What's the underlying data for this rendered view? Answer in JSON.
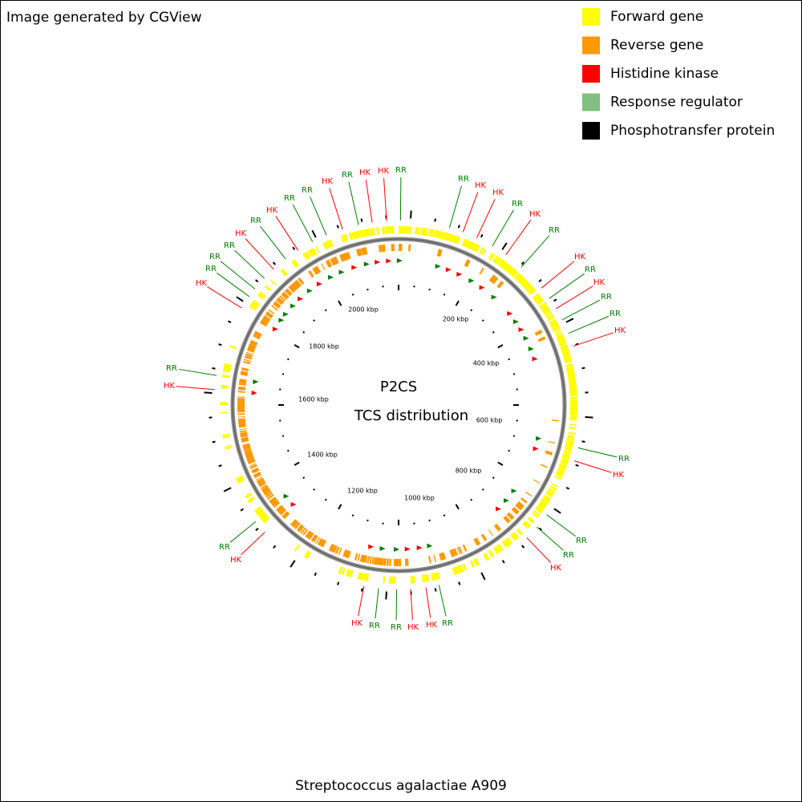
{
  "header": {
    "title": "Image generated by CGView"
  },
  "legend": [
    {
      "label": "Forward gene",
      "color": "#ffff00"
    },
    {
      "label": "Reverse gene",
      "color": "#ff9900"
    },
    {
      "label": "Histidine kinase",
      "color": "#ff0000"
    },
    {
      "label": "Response regulator",
      "color": "#7fbf7f"
    },
    {
      "label": "Phosphotransfer protein",
      "color": "#000000"
    }
  ],
  "center": {
    "title": "P2CS",
    "subtitle": "TCS distribution"
  },
  "scale_labels": [
    "200 kbp",
    "400 kbp",
    "600 kbp",
    "800 kbp",
    "1000 kbp",
    "1200 kbp",
    "1400 kbp",
    "1600 kbp",
    "1800 kbp",
    "2000 kbp"
  ],
  "features": [
    "RR",
    "HK",
    "HK",
    "RR",
    "HK",
    "RR",
    "RR",
    "HK",
    "RR",
    "HK",
    "RR",
    "RR",
    "RR",
    "HK",
    "RR",
    "HK",
    "HK",
    "RR",
    "HK",
    "RR",
    "HK",
    "RR",
    "HK",
    "RR",
    "RR",
    "HK",
    "RR",
    "HK",
    "RR",
    "HK",
    "RR",
    "RR",
    "HK",
    "RR",
    "HK",
    "HK",
    "RR",
    "RR",
    "HK",
    "HK",
    "RR"
  ],
  "footer": {
    "title": "Streptococcus agalactiae A909"
  }
}
